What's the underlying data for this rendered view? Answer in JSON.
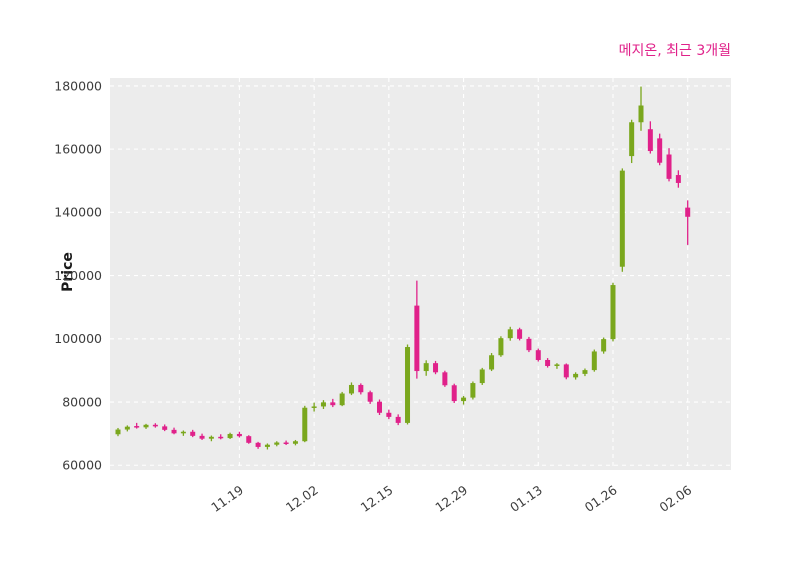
{
  "chart_data": {
    "type": "candlestick",
    "title": "메지온, 최근 3개월",
    "ylabel": "Price",
    "ylim": [
      58500,
      182500
    ],
    "y_ticks": [
      60000,
      80000,
      100000,
      120000,
      140000,
      160000,
      180000
    ],
    "x_ticks": [
      {
        "label": "11.19",
        "index": 13
      },
      {
        "label": "12.02",
        "index": 21
      },
      {
        "label": "12.15",
        "index": 29
      },
      {
        "label": "12.29",
        "index": 37
      },
      {
        "label": "01.13",
        "index": 45
      },
      {
        "label": "01.26",
        "index": 53
      },
      {
        "label": "02.06",
        "index": 61
      }
    ],
    "grid": {
      "on": true,
      "style": "dashed"
    },
    "legend": "none",
    "colors": {
      "up": "#7aa71d",
      "down": "#e0218a",
      "title": "#e0218a",
      "plot_bg": "#ececec",
      "grid": "#ffffff",
      "tick_text": "#3d3d3d",
      "ylabel_text": "#1a1a1a"
    },
    "candles_ohlc": [
      [
        69800,
        71800,
        69200,
        71300
      ],
      [
        71300,
        72600,
        70700,
        72200
      ],
      [
        72400,
        73400,
        71600,
        72000
      ],
      [
        72000,
        73100,
        71500,
        72800
      ],
      [
        72800,
        73300,
        71900,
        72300
      ],
      [
        72300,
        72900,
        70800,
        71200
      ],
      [
        71200,
        71900,
        69800,
        70100
      ],
      [
        70100,
        71000,
        69300,
        70600
      ],
      [
        70600,
        71200,
        68900,
        69300
      ],
      [
        69300,
        70000,
        68000,
        68400
      ],
      [
        68400,
        69400,
        67600,
        69000
      ],
      [
        69000,
        69800,
        68200,
        68600
      ],
      [
        68600,
        70300,
        68300,
        69900
      ],
      [
        69900,
        70600,
        68800,
        69200
      ],
      [
        69200,
        69500,
        66800,
        67100
      ],
      [
        67100,
        67400,
        65200,
        65800
      ],
      [
        65800,
        66900,
        65000,
        66500
      ],
      [
        66500,
        67600,
        66000,
        67200
      ],
      [
        67200,
        67800,
        66400,
        66800
      ],
      [
        66800,
        68000,
        66300,
        67600
      ],
      [
        67600,
        78800,
        67300,
        78200
      ],
      [
        78200,
        79800,
        77000,
        78600
      ],
      [
        78600,
        80600,
        77800,
        79900
      ],
      [
        79900,
        81000,
        78400,
        79000
      ],
      [
        79000,
        83200,
        78700,
        82700
      ],
      [
        82700,
        86200,
        82200,
        85400
      ],
      [
        85400,
        85900,
        82400,
        83100
      ],
      [
        83100,
        83600,
        79400,
        80100
      ],
      [
        80100,
        80800,
        75900,
        76600
      ],
      [
        76600,
        77600,
        74600,
        75300
      ],
      [
        75300,
        76100,
        72700,
        73400
      ],
      [
        73400,
        98200,
        72900,
        97400
      ],
      [
        110500,
        118400,
        87400,
        89800
      ],
      [
        89800,
        93200,
        88300,
        92300
      ],
      [
        92300,
        93000,
        88800,
        89400
      ],
      [
        89400,
        89900,
        84800,
        85300
      ],
      [
        85300,
        85800,
        79700,
        80300
      ],
      [
        80300,
        81900,
        79200,
        81400
      ],
      [
        81400,
        86500,
        80800,
        86000
      ],
      [
        86000,
        90800,
        85400,
        90300
      ],
      [
        90300,
        95500,
        89800,
        94800
      ],
      [
        94800,
        100800,
        94300,
        100200
      ],
      [
        100200,
        103800,
        99400,
        103000
      ],
      [
        103000,
        103500,
        99500,
        100000
      ],
      [
        100000,
        100600,
        95800,
        96400
      ],
      [
        96400,
        96900,
        92800,
        93300
      ],
      [
        93300,
        93900,
        90900,
        91400
      ],
      [
        91400,
        92300,
        90500,
        91900
      ],
      [
        91900,
        92200,
        87200,
        87800
      ],
      [
        87800,
        89400,
        87100,
        88900
      ],
      [
        88900,
        90600,
        88200,
        90100
      ],
      [
        90100,
        96600,
        89600,
        96000
      ],
      [
        96000,
        100400,
        95300,
        99900
      ],
      [
        99900,
        117700,
        99200,
        117000
      ],
      [
        122800,
        153900,
        121200,
        153200
      ],
      [
        157800,
        169300,
        155600,
        168500
      ],
      [
        168500,
        179800,
        165800,
        173800
      ],
      [
        166300,
        168800,
        158600,
        159400
      ],
      [
        163400,
        164900,
        154900,
        155700
      ],
      [
        158300,
        160300,
        149800,
        150600
      ],
      [
        151800,
        153300,
        147800,
        149300
      ],
      [
        141500,
        143800,
        129700,
        138600
      ]
    ]
  }
}
